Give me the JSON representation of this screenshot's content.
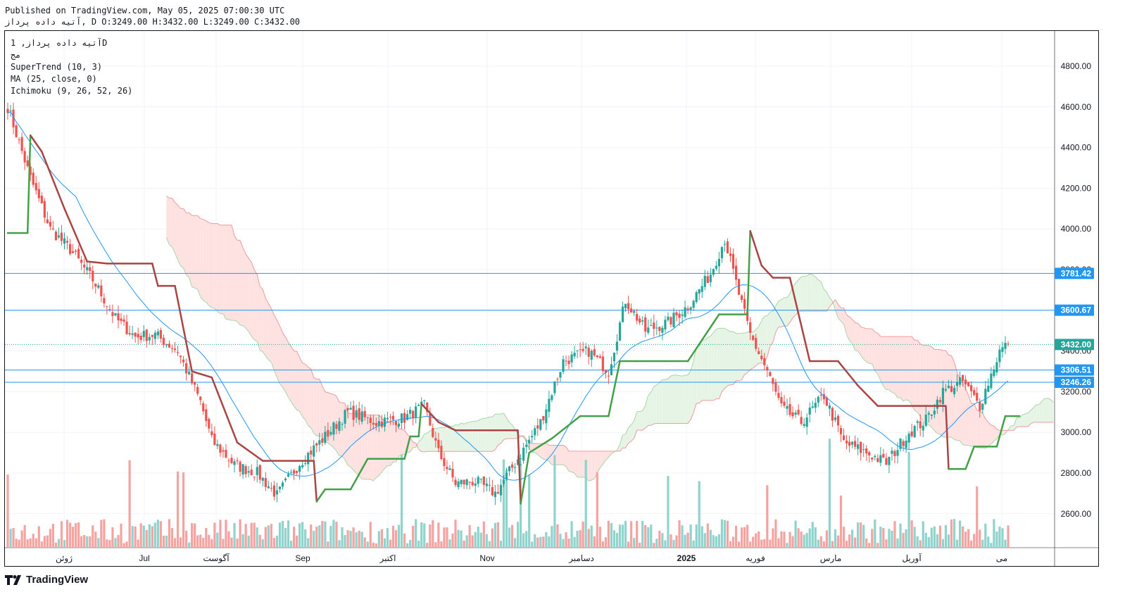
{
  "header": {
    "published": "Published on TradingView.com, May 05, 2025 07:00:30 UTC",
    "ohlc": "آتیه داده پرداز, D O:3249.00 H:3432.00 L:3249.00 C:3432.00"
  },
  "legend": {
    "symbol": "آتیه داده پرداز, 1D",
    "exchange": "مج",
    "indicators": [
      "SuperTrend (10, 3)",
      "MA (25, close, 0)",
      "Ichimoku (9, 26, 52, 26)"
    ]
  },
  "footer": {
    "brand": "TradingView"
  },
  "colors": {
    "up": "#26a69a",
    "down": "#ef5350",
    "up_vol": "#8fd3cc",
    "down_vol": "#f4a3a1",
    "st_up": "#43a047",
    "st_down": "#a94442",
    "ma": "#2196f3",
    "cloud_red": "#fde2e1",
    "cloud_green": "#e6f4e6",
    "hline": "#2196f3",
    "price_tag": "#2196f3",
    "last_price": "#26a69a"
  },
  "chart_data": {
    "type": "candlestick",
    "y_ticks": [
      2600,
      2800,
      3000,
      3200,
      3400,
      3600,
      3800,
      4000,
      4200,
      4400,
      4600,
      4800
    ],
    "ylim": [
      2460,
      4900
    ],
    "x_labels": [
      "ژوئن",
      "Jul",
      "آگوست",
      "Sep",
      "اکتبر",
      "Nov",
      "دسامبر",
      "2025",
      "فوریه",
      "مارس",
      "آوریل",
      "می"
    ],
    "horizontal_lines": [
      3781.42,
      3600.67,
      3306.51,
      3246.26
    ],
    "price_labels": [
      "3781.42",
      "3600.67",
      "3432.00",
      "3306.51",
      "3246.26"
    ],
    "last_price": 3432.0,
    "close_anchors": [
      [
        0,
        4600
      ],
      [
        8,
        4250
      ],
      [
        15,
        4000
      ],
      [
        22,
        3900
      ],
      [
        30,
        3750
      ],
      [
        38,
        3560
      ],
      [
        45,
        3470
      ],
      [
        52,
        3480
      ],
      [
        60,
        3400
      ],
      [
        68,
        3150
      ],
      [
        72,
        2960
      ],
      [
        80,
        2840
      ],
      [
        88,
        2800
      ],
      [
        95,
        2690
      ],
      [
        103,
        2850
      ],
      [
        110,
        2950
      ],
      [
        120,
        3100
      ],
      [
        130,
        3050
      ],
      [
        140,
        3070
      ],
      [
        147,
        3130
      ],
      [
        152,
        2900
      ],
      [
        158,
        2750
      ],
      [
        165,
        2760
      ],
      [
        172,
        2700
      ],
      [
        180,
        2870
      ],
      [
        188,
        3050
      ],
      [
        196,
        3350
      ],
      [
        205,
        3400
      ],
      [
        212,
        3300
      ],
      [
        218,
        3650
      ],
      [
        225,
        3500
      ],
      [
        233,
        3540
      ],
      [
        240,
        3620
      ],
      [
        248,
        3780
      ],
      [
        253,
        3950
      ],
      [
        258,
        3680
      ],
      [
        262,
        3480
      ],
      [
        268,
        3300
      ],
      [
        273,
        3120
      ],
      [
        280,
        3050
      ],
      [
        288,
        3180
      ],
      [
        295,
        2950
      ],
      [
        303,
        2900
      ],
      [
        310,
        2850
      ],
      [
        318,
        3000
      ],
      [
        324,
        3060
      ],
      [
        330,
        3200
      ],
      [
        337,
        3250
      ],
      [
        343,
        3130
      ],
      [
        350,
        3400
      ],
      [
        353,
        3432
      ]
    ],
    "supertrend": [
      [
        0,
        3980,
        "up"
      ],
      [
        7,
        3980,
        "up"
      ],
      [
        8,
        4460,
        "down"
      ],
      [
        12,
        4380,
        "down"
      ],
      [
        20,
        4100,
        "down"
      ],
      [
        28,
        3840,
        "down"
      ],
      [
        35,
        3830,
        "down"
      ],
      [
        42,
        3830,
        "down"
      ],
      [
        51,
        3830,
        "down"
      ],
      [
        53,
        3720,
        "down"
      ],
      [
        59,
        3720,
        "down"
      ],
      [
        65,
        3300,
        "down"
      ],
      [
        72,
        3270,
        "down"
      ],
      [
        81,
        2950,
        "down"
      ],
      [
        90,
        2860,
        "down"
      ],
      [
        101,
        2860,
        "down"
      ],
      [
        108,
        2860,
        "down"
      ],
      [
        109,
        2660,
        "up"
      ],
      [
        112,
        2720,
        "up"
      ],
      [
        121,
        2720,
        "up"
      ],
      [
        127,
        2870,
        "up"
      ],
      [
        140,
        2870,
        "up"
      ],
      [
        142,
        2980,
        "up"
      ],
      [
        145,
        2980,
        "up"
      ],
      [
        146,
        3140,
        "down"
      ],
      [
        152,
        3050,
        "down"
      ],
      [
        158,
        3010,
        "down"
      ],
      [
        180,
        3010,
        "down"
      ],
      [
        181,
        2650,
        "up"
      ],
      [
        184,
        2900,
        "up"
      ],
      [
        192,
        2970,
        "up"
      ],
      [
        202,
        3080,
        "up"
      ],
      [
        212,
        3080,
        "up"
      ],
      [
        216,
        3350,
        "up"
      ],
      [
        222,
        3350,
        "up"
      ],
      [
        232,
        3350,
        "up"
      ],
      [
        240,
        3350,
        "up"
      ],
      [
        251,
        3580,
        "up"
      ],
      [
        261,
        3580,
        "up"
      ],
      [
        262,
        3990,
        "down"
      ],
      [
        266,
        3820,
        "down"
      ],
      [
        270,
        3760,
        "down"
      ],
      [
        276,
        3760,
        "down"
      ],
      [
        283,
        3350,
        "down"
      ],
      [
        293,
        3350,
        "down"
      ],
      [
        300,
        3230,
        "down"
      ],
      [
        307,
        3130,
        "down"
      ],
      [
        331,
        3130,
        "down"
      ],
      [
        332,
        2820,
        "up"
      ],
      [
        338,
        2820,
        "up"
      ],
      [
        341,
        2930,
        "up"
      ],
      [
        349,
        2930,
        "up"
      ],
      [
        352,
        3080,
        "up"
      ],
      [
        357,
        3080,
        "up"
      ]
    ],
    "volume_scale_note": "volume bars in lower pane, no axis"
  }
}
